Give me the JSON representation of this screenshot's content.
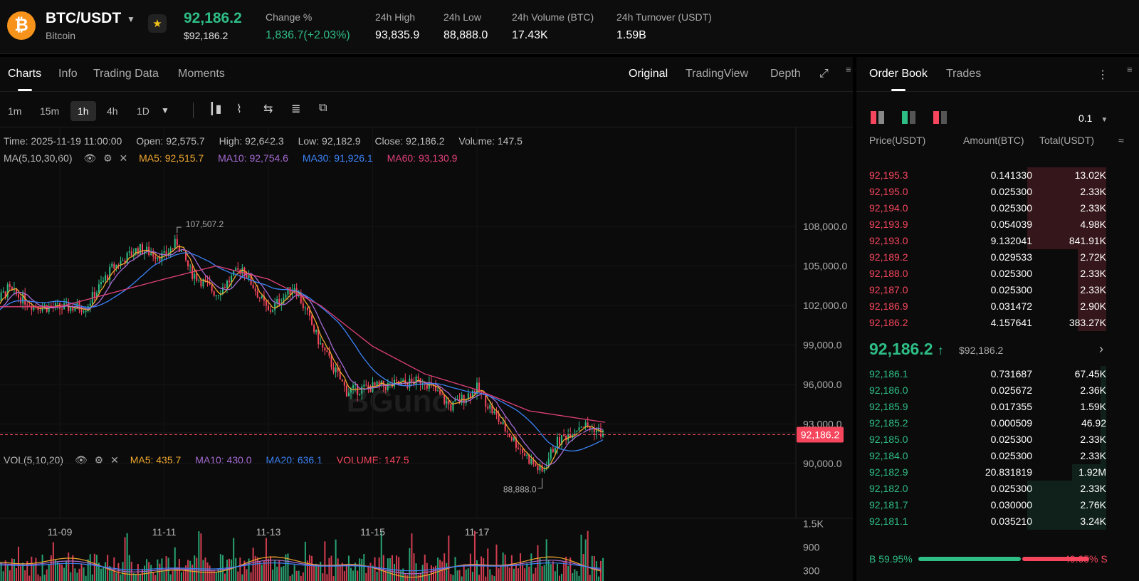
{
  "header": {
    "coin_glyph": "₿",
    "pair": "BTC/USDT",
    "coin_name": "Bitcoin",
    "last_price": "92,186.2",
    "last_price_usd": "$92,186.2",
    "stats": [
      {
        "label": "Change %",
        "value": "1,836.7(+2.03%)"
      },
      {
        "label": "24h High",
        "value": "93,835.9"
      },
      {
        "label": "24h Low",
        "value": "88,888.0"
      },
      {
        "label": "24h Volume (BTC)",
        "value": "17.43K"
      },
      {
        "label": "24h Turnover (USDT)",
        "value": "1.59B"
      }
    ]
  },
  "chart_panel": {
    "tabs": [
      "Charts",
      "Info",
      "Trading Data",
      "Moments"
    ],
    "view_tabs": [
      "Original",
      "TradingView",
      "Depth"
    ],
    "timeframes": [
      "1m",
      "15m",
      "1h",
      "4h",
      "1D"
    ],
    "active_timeframe": "1h",
    "ohlc": {
      "time": "Time: 2025-11-19 11:00:00",
      "open": "Open: 92,575.7",
      "high": "High: 92,642.3",
      "low": "Low: 92,182.9",
      "close": "Close: 92,186.2",
      "volume": "Volume: 147.5"
    },
    "ma": {
      "label": "MA(5,10,30,60)",
      "items": [
        {
          "text": "MA5: 92,515.7",
          "color": "#f0a830"
        },
        {
          "text": "MA10: 92,754.6",
          "color": "#a66bd3"
        },
        {
          "text": "MA30: 91,926.1",
          "color": "#3b82f6"
        },
        {
          "text": "MA60: 93,130.9",
          "color": "#e0407a"
        }
      ]
    },
    "vol": {
      "label": "VOL(5,10,20)",
      "items": [
        {
          "text": "MA5: 435.7",
          "color": "#f0a830"
        },
        {
          "text": "MA10: 430.0",
          "color": "#a66bd3"
        },
        {
          "text": "MA20: 636.1",
          "color": "#3b82f6"
        },
        {
          "text": "VOLUME: 147.5",
          "color": "#f6465d"
        }
      ]
    },
    "watermark": "BGuno"
  },
  "chart_data": {
    "type": "candlestick",
    "interval": "1h",
    "price_ticks": [
      "108,000.0",
      "105,000.0",
      "102,000.0",
      "99,000.0",
      "96,000.0",
      "93,000.0",
      "90,000.0"
    ],
    "price_tick_values": [
      108000,
      105000,
      102000,
      99000,
      96000,
      93000,
      90000
    ],
    "volume_ticks": [
      "1.5K",
      "900",
      "300"
    ],
    "volume_tick_values": [
      1500,
      900,
      300
    ],
    "x_ticks": [
      "11-09",
      "11-11",
      "11-13",
      "11-15",
      "11-17"
    ],
    "current_price_label": "92,186.2",
    "current_price": 92186.2,
    "high_marker_label": "107,507.2",
    "high_marker": 107507.2,
    "low_marker_label": "88,888.0",
    "low_marker": 88888.0,
    "close_path": [
      {
        "x": "11-07 12:00",
        "close": 101000
      },
      {
        "x": "11-08 00:00",
        "close": 103200
      },
      {
        "x": "11-08 12:00",
        "close": 102000
      },
      {
        "x": "11-09 00:00",
        "close": 101800
      },
      {
        "x": "11-09 12:00",
        "close": 101900
      },
      {
        "x": "11-10 00:00",
        "close": 104800
      },
      {
        "x": "11-10 12:00",
        "close": 106300
      },
      {
        "x": "11-11 00:00",
        "close": 105700
      },
      {
        "x": "11-11 06:00",
        "close": 106800
      },
      {
        "x": "11-11 12:00",
        "close": 104600
      },
      {
        "x": "11-12 00:00",
        "close": 102900
      },
      {
        "x": "11-12 12:00",
        "close": 104900
      },
      {
        "x": "11-13 00:00",
        "close": 101500
      },
      {
        "x": "11-13 12:00",
        "close": 103500
      },
      {
        "x": "11-14 00:00",
        "close": 99000
      },
      {
        "x": "11-14 12:00",
        "close": 95500
      },
      {
        "x": "11-15 00:00",
        "close": 95800
      },
      {
        "x": "11-15 12:00",
        "close": 96000
      },
      {
        "x": "11-16 00:00",
        "close": 96300
      },
      {
        "x": "11-16 12:00",
        "close": 94300
      },
      {
        "x": "11-17 00:00",
        "close": 95700
      },
      {
        "x": "11-17 12:00",
        "close": 92800
      },
      {
        "x": "11-18 00:00",
        "close": 90300
      },
      {
        "x": "11-18 06:00",
        "close": 89300
      },
      {
        "x": "11-18 12:00",
        "close": 91500
      },
      {
        "x": "11-19 00:00",
        "close": 93000
      },
      {
        "x": "11-19 11:00",
        "close": 92186
      }
    ],
    "ma60_path": [
      {
        "x": "11-07 12:00",
        "value": 101900
      },
      {
        "x": "11-09 00:00",
        "value": 101900
      },
      {
        "x": "11-11 00:00",
        "value": 104000
      },
      {
        "x": "11-12 00:00",
        "value": 105000
      },
      {
        "x": "11-13 00:00",
        "value": 104000
      },
      {
        "x": "11-14 00:00",
        "value": 102000
      },
      {
        "x": "11-15 00:00",
        "value": 98900
      },
      {
        "x": "11-16 00:00",
        "value": 96800
      },
      {
        "x": "11-17 00:00",
        "value": 95600
      },
      {
        "x": "11-18 00:00",
        "value": 94000
      },
      {
        "x": "11-19 11:00",
        "value": 93130.9
      }
    ]
  },
  "orderbook": {
    "tabs": [
      "Order Book",
      "Trades"
    ],
    "precision": "0.1",
    "headers": [
      "Price(USDT)",
      "Amount(BTC)",
      "Total(USDT)"
    ],
    "asks": [
      {
        "price": "92,195.3",
        "amount": "0.141330",
        "total": "13.02K",
        "depth": 0.28
      },
      {
        "price": "92,195.0",
        "amount": "0.025300",
        "total": "2.33K",
        "depth": 0.28
      },
      {
        "price": "92,194.0",
        "amount": "0.025300",
        "total": "2.33K",
        "depth": 0.28
      },
      {
        "price": "92,193.9",
        "amount": "0.054039",
        "total": "4.98K",
        "depth": 0.28
      },
      {
        "price": "92,193.0",
        "amount": "9.132041",
        "total": "841.91K",
        "depth": 0.28
      },
      {
        "price": "92,189.2",
        "amount": "0.029533",
        "total": "2.72K",
        "depth": 0.1
      },
      {
        "price": "92,188.0",
        "amount": "0.025300",
        "total": "2.33K",
        "depth": 0.1
      },
      {
        "price": "92,187.0",
        "amount": "0.025300",
        "total": "2.33K",
        "depth": 0.1
      },
      {
        "price": "92,186.9",
        "amount": "0.031472",
        "total": "2.90K",
        "depth": 0.1
      },
      {
        "price": "92,186.2",
        "amount": "4.157641",
        "total": "383.27K",
        "depth": 0.1
      }
    ],
    "mid": {
      "price": "92,186.2",
      "arrow": "↑",
      "usd": "$92,186.2"
    },
    "bids": [
      {
        "price": "92,186.1",
        "amount": "0.731687",
        "total": "67.45K",
        "depth": 0.02
      },
      {
        "price": "92,186.0",
        "amount": "0.025672",
        "total": "2.36K",
        "depth": 0.02
      },
      {
        "price": "92,185.9",
        "amount": "0.017355",
        "total": "1.59K",
        "depth": 0.02
      },
      {
        "price": "92,185.2",
        "amount": "0.000509",
        "total": "46.92",
        "depth": 0.02
      },
      {
        "price": "92,185.0",
        "amount": "0.025300",
        "total": "2.33K",
        "depth": 0.02
      },
      {
        "price": "92,184.0",
        "amount": "0.025300",
        "total": "2.33K",
        "depth": 0.02
      },
      {
        "price": "92,182.9",
        "amount": "20.831819",
        "total": "1.92M",
        "depth": 0.12
      },
      {
        "price": "92,182.0",
        "amount": "0.025300",
        "total": "2.33K",
        "depth": 0.28
      },
      {
        "price": "92,181.7",
        "amount": "0.030000",
        "total": "2.76K",
        "depth": 0.28
      },
      {
        "price": "92,181.1",
        "amount": "0.035210",
        "total": "3.24K",
        "depth": 0.28
      }
    ],
    "buy_ratio_label": "B 59.95%",
    "sell_ratio_label": "40.05% S",
    "buy_ratio": 0.5995
  },
  "colors": {
    "up": "#2ebd85",
    "down": "#f6465d",
    "accent": "#f7931a"
  }
}
